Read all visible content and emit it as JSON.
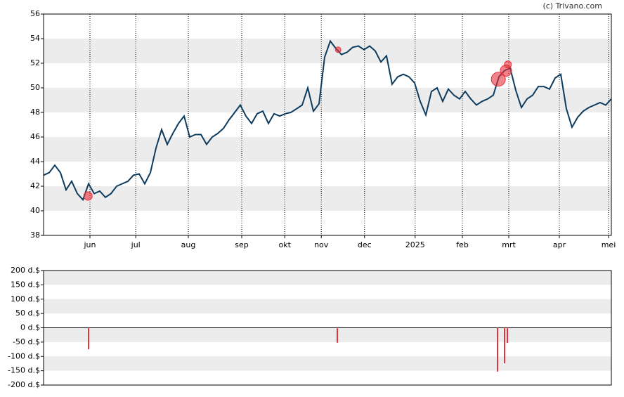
{
  "credit": "(c) Trivano.com",
  "chart_data": [
    {
      "type": "line",
      "color": "#0d3b5e",
      "values": [
        42.9,
        43.1,
        43.7,
        43.1,
        41.7,
        42.4,
        41.4,
        40.9,
        42.2,
        41.4,
        41.6,
        41.1,
        41.4,
        42.0,
        42.2,
        42.4,
        42.9,
        43.0,
        42.2,
        43.1,
        45.1,
        46.6,
        45.4,
        46.3,
        47.1,
        47.7,
        46.0,
        46.2,
        46.2,
        45.4,
        46.0,
        46.3,
        46.7,
        47.4,
        48.0,
        48.6,
        47.7,
        47.1,
        47.9,
        48.1,
        47.1,
        47.9,
        47.7,
        47.9,
        48.0,
        48.3,
        48.6,
        50.0,
        48.1,
        48.7,
        52.5,
        53.8,
        53.2,
        52.7,
        52.9,
        53.3,
        53.4,
        53.1,
        53.4,
        53.0,
        52.1,
        52.6,
        50.3,
        50.9,
        51.1,
        50.9,
        50.4,
        48.9,
        47.8,
        49.7,
        50.0,
        48.9,
        49.9,
        49.4,
        49.1,
        49.7,
        49.1,
        48.6,
        48.9,
        49.1,
        49.4,
        50.9,
        51.4,
        51.6,
        49.8,
        48.4,
        49.1,
        49.4,
        50.1,
        50.1,
        49.9,
        50.8,
        51.1,
        48.3,
        46.8,
        47.6,
        48.1,
        48.4,
        48.6,
        48.8,
        48.6,
        49.1
      ],
      "markers": {
        "color": "#e8323c",
        "x": [
          7.9,
          52.4,
          80.9,
          82.25,
          82.6
        ],
        "values": [
          41.2,
          53.1,
          50.7,
          51.4,
          51.9
        ],
        "sizes": [
          6,
          4,
          10,
          8,
          5
        ]
      },
      "xlim": [
        0,
        101
      ],
      "xticks": [
        {
          "value": 8.25,
          "label": "jun"
        },
        {
          "value": 16.4,
          "label": "jul"
        },
        {
          "value": 25.75,
          "label": "aug"
        },
        {
          "value": 35.25,
          "label": "sep"
        },
        {
          "value": 42.9,
          "label": "okt"
        },
        {
          "value": 49.4,
          "label": "nov"
        },
        {
          "value": 57.1,
          "label": "dec"
        },
        {
          "value": 66.1,
          "label": "2025"
        },
        {
          "value": 74.5,
          "label": "feb"
        },
        {
          "value": 82.75,
          "label": "mrt"
        },
        {
          "value": 91.75,
          "label": "apr"
        },
        {
          "value": 100.5,
          "label": "mei"
        }
      ],
      "ylim": [
        38,
        56
      ],
      "yticks": [
        38,
        40,
        42,
        44,
        46,
        48,
        50,
        52,
        54,
        56
      ],
      "grid": true
    },
    {
      "type": "bar",
      "color": "#e8323c",
      "x": [
        8.0,
        52.25,
        80.75,
        82.0,
        82.5
      ],
      "values": [
        -75,
        -52,
        -153,
        -124,
        -53
      ],
      "xlim": [
        0,
        101
      ],
      "ylim": [
        -200,
        200
      ],
      "yticks": [
        {
          "value": 200,
          "label": "200 d.$"
        },
        {
          "value": 150,
          "label": "150 d.$"
        },
        {
          "value": 100,
          "label": "100 d.$"
        },
        {
          "value": 50,
          "label": "50 d.$"
        },
        {
          "value": 0,
          "label": "0 d.$"
        },
        {
          "value": -50,
          "label": "-50 d.$"
        },
        {
          "value": -100,
          "label": "-100 d.$"
        },
        {
          "value": -150,
          "label": "-150 d.$"
        },
        {
          "value": -200,
          "label": "-200 d.$"
        }
      ],
      "grid": true
    }
  ]
}
